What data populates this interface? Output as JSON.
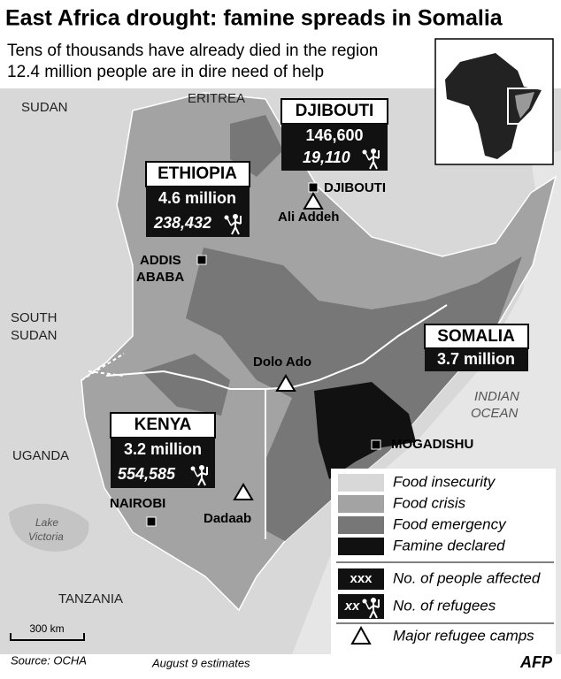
{
  "header": {
    "title": "East Africa drought: famine spreads in Somalia",
    "subtitle_lines": [
      "Tens of thousands have already died in the region",
      "12.4 million people are in dire need of help"
    ]
  },
  "map": {
    "regions": [
      "SUDAN",
      "ERITREA",
      "SOUTH",
      "SUDAN",
      "UGANDA",
      "TANZANIA"
    ],
    "ocean": [
      "INDIAN",
      "OCEAN"
    ],
    "lake": [
      "Lake",
      "Victoria"
    ],
    "countries": [
      {
        "name": "ETHIOPIA",
        "affected": "4.6 million",
        "refugees": "238,432"
      },
      {
        "name": "DJIBOUTI",
        "affected": "146,600",
        "refugees": "19,110"
      },
      {
        "name": "KENYA",
        "affected": "3.2 million",
        "refugees": "554,585"
      },
      {
        "name": "SOMALIA",
        "affected": "3.7 million"
      }
    ],
    "cities": [
      "DJIBOUTI",
      "ADDIS",
      "ABABA",
      "NAIROBI",
      "MOGADISHU"
    ],
    "camps": [
      "Ali Addeh",
      "Dolo Ado",
      "Dadaab"
    ],
    "scale": "300 km"
  },
  "legend": {
    "items": [
      "Food insecurity",
      "Food crisis",
      "Food emergency",
      "Famine declared"
    ],
    "affected_symbol": "xxx",
    "affected_label": "No. of people affected",
    "refugees_symbol": "xx",
    "refugees_label": "No. of refugees",
    "camps_label": "Major refugee camps"
  },
  "footer": {
    "source": "Source: OCHA",
    "date": "August 9 estimates",
    "logo": "AFP"
  }
}
